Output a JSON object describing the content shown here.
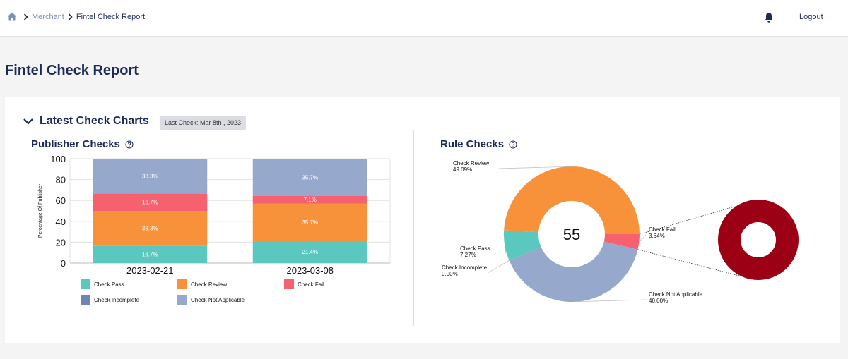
{
  "breadcrumb": {
    "items": [
      "Merchant",
      "Fintel Check Report"
    ]
  },
  "header": {
    "logout_label": "Logout"
  },
  "page": {
    "title": "Fintel Check Report"
  },
  "section": {
    "title": "Latest Check Charts",
    "last_check": "Last Check: Mar 8th , 2023"
  },
  "publisher": {
    "title": "Publisher Checks"
  },
  "rule": {
    "title": "Rule Checks"
  },
  "colors": {
    "pass": "#5bc8bf",
    "review": "#f7923a",
    "fail": "#f6616f",
    "incomplete": "#6f86b2",
    "not_applicable": "#96a8cb",
    "zoom_ring": "#9b0014"
  },
  "chart_data": [
    {
      "type": "bar",
      "stacked": true,
      "title": "Publisher Checks",
      "ylabel": "Percentage Of Publisher",
      "ylim": [
        0,
        100
      ],
      "yticks": [
        0,
        20,
        40,
        60,
        80,
        100
      ],
      "categories": [
        "2023-02-21",
        "2023-03-08"
      ],
      "series": [
        {
          "name": "Check Pass",
          "values": [
            16.7,
            21.4
          ],
          "labels": [
            "16.7%",
            "21.4%"
          ]
        },
        {
          "name": "Check Review",
          "values": [
            33.3,
            35.7
          ],
          "labels": [
            "33.3%",
            "35.7%"
          ]
        },
        {
          "name": "Check Fail",
          "values": [
            16.7,
            7.1
          ],
          "labels": [
            "16.7%",
            "7.1%"
          ]
        },
        {
          "name": "Check Incomplete",
          "values": [
            0,
            0
          ],
          "labels": [
            "",
            ""
          ]
        },
        {
          "name": "Check Not Applicable",
          "values": [
            33.3,
            35.7
          ],
          "labels": [
            "33.3%",
            "35.7%"
          ]
        }
      ],
      "legend": {
        "placement": "bottom"
      },
      "grid": true
    },
    {
      "type": "pie",
      "donut": true,
      "title": "Rule Checks",
      "center_label": "55",
      "slices": [
        {
          "name": "Check Review",
          "value": 49.09,
          "label": "49.09%"
        },
        {
          "name": "Check Fail",
          "value": 3.64,
          "label": "3.64%"
        },
        {
          "name": "Check Not Applicable",
          "value": 40.0,
          "label": "40.00%"
        },
        {
          "name": "Check Incomplete",
          "value": 0.0,
          "label": "0.00%"
        },
        {
          "name": "Check Pass",
          "value": 7.27,
          "label": "7.27%"
        }
      ],
      "exploded_slice": "Check Fail"
    }
  ]
}
